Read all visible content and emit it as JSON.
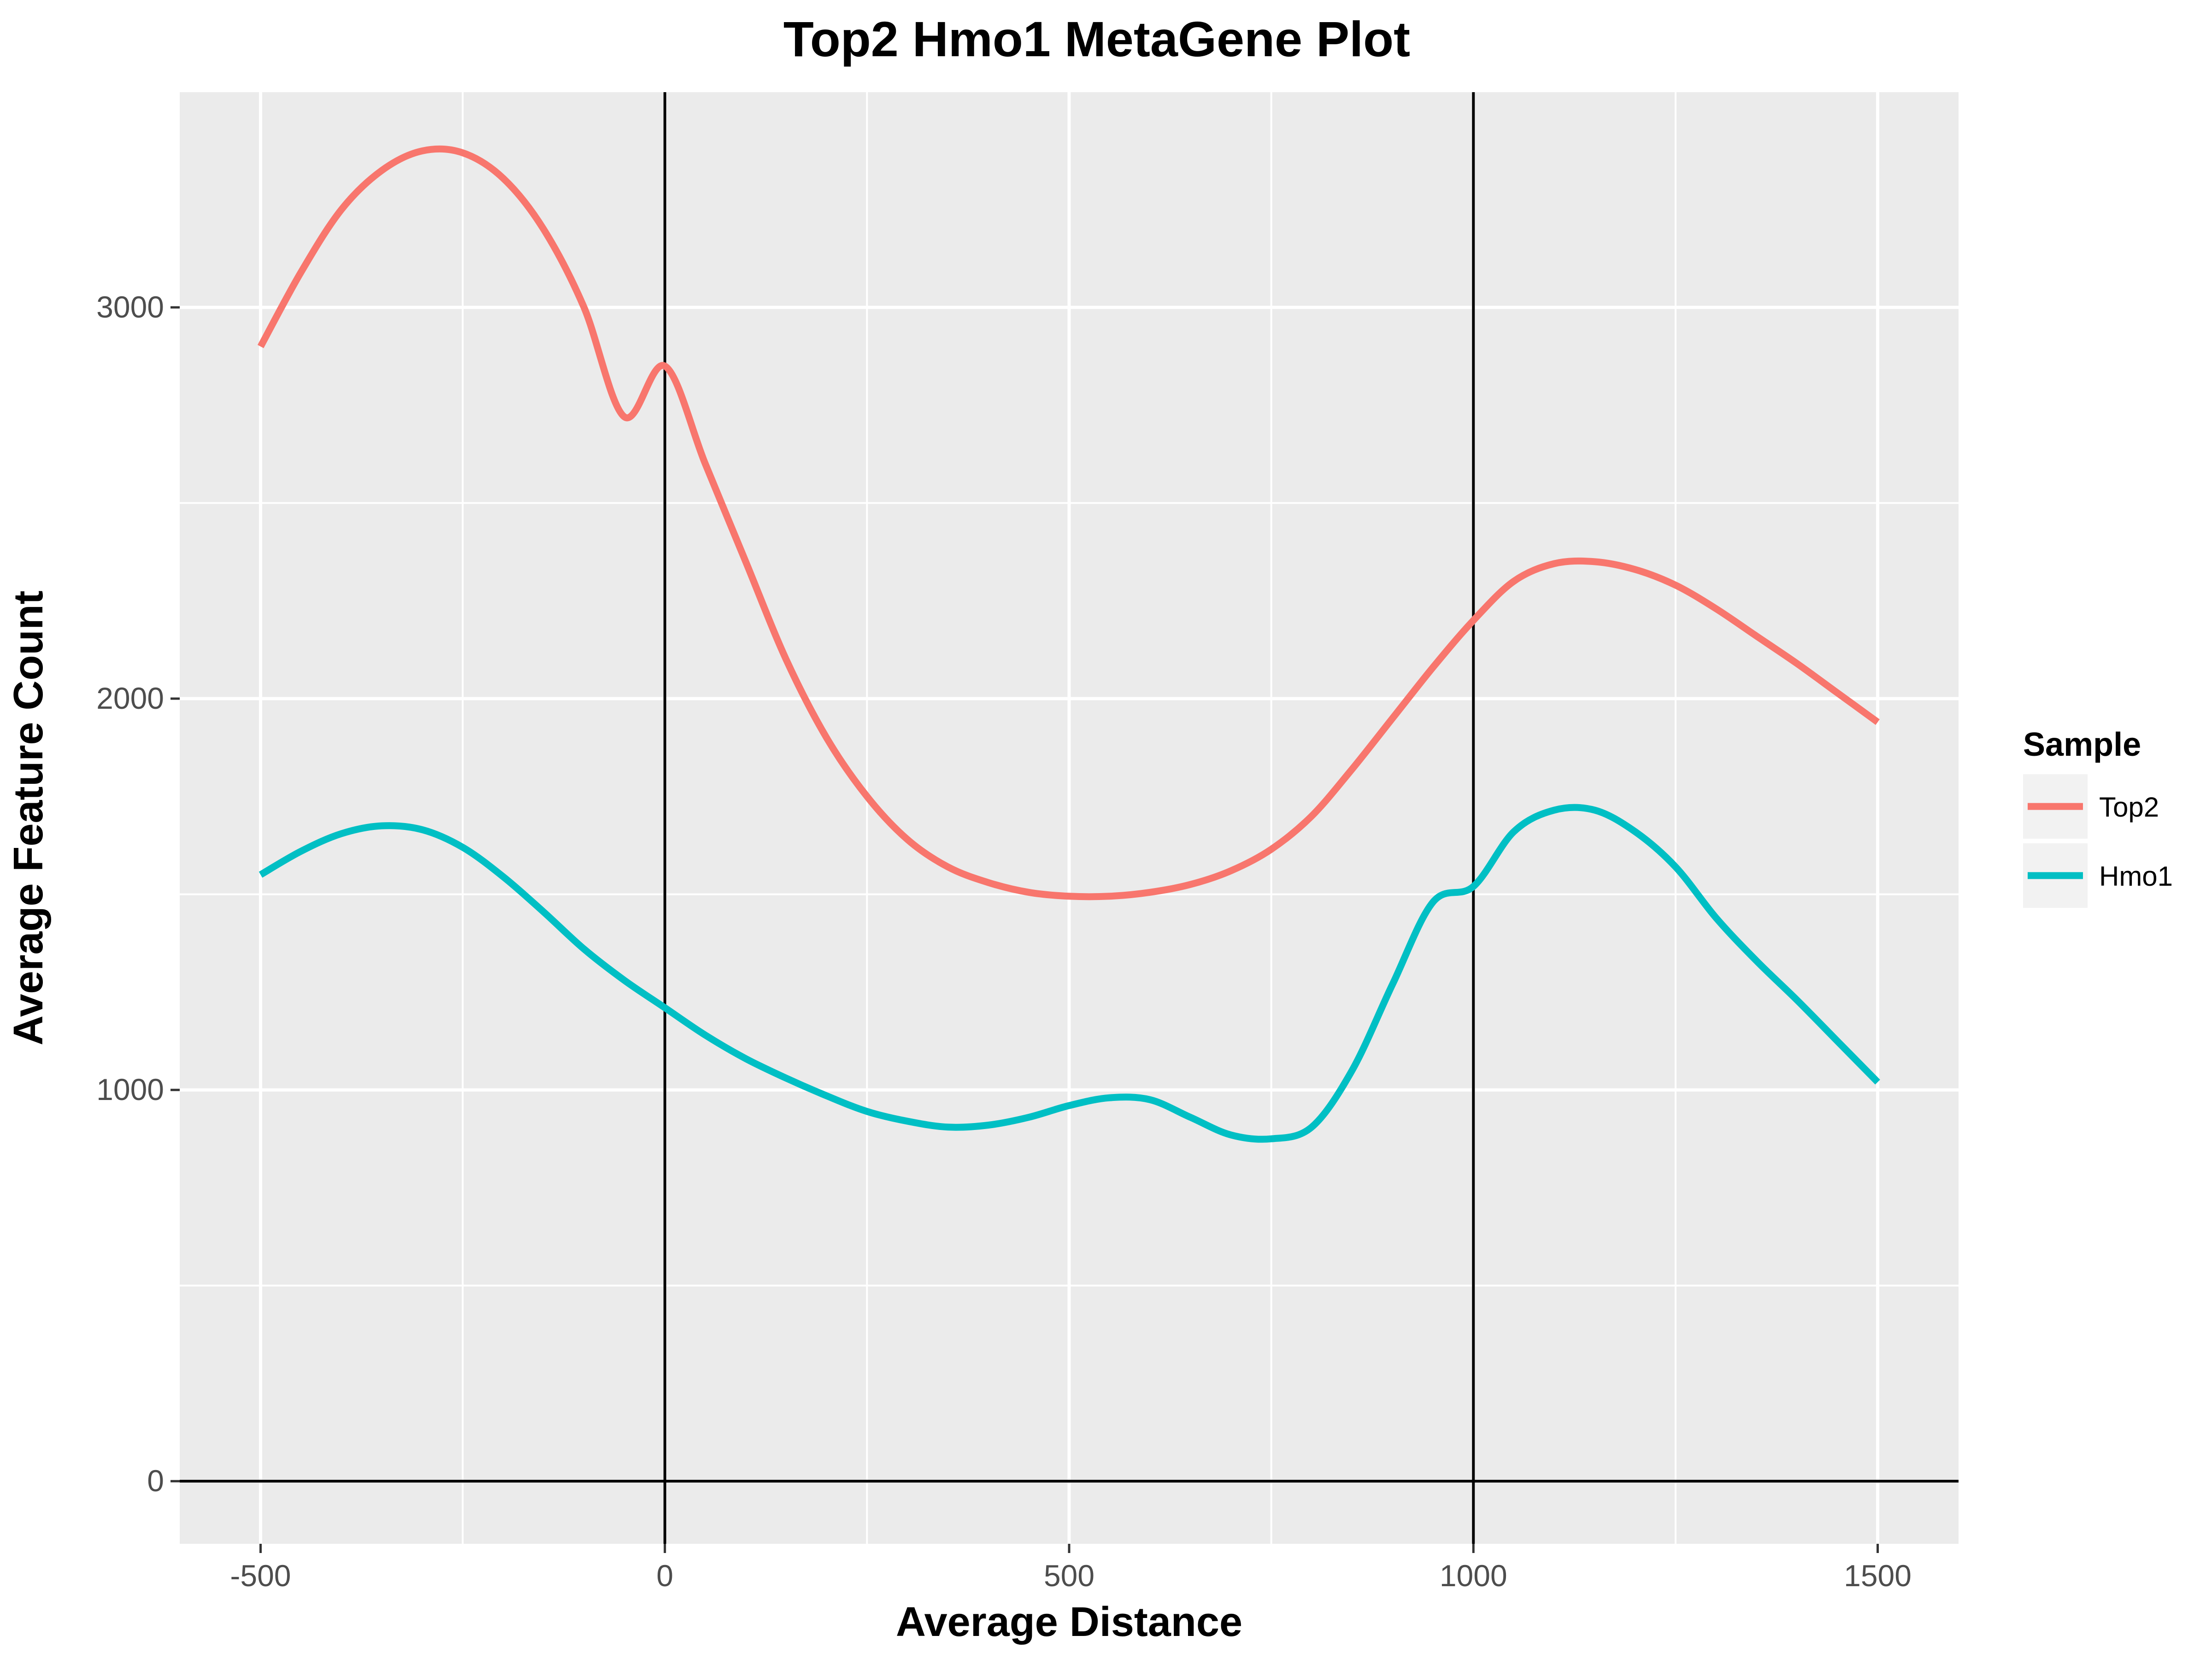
{
  "chart_data": {
    "type": "line",
    "title": "Top2 Hmo1 MetaGene Plot",
    "xlabel": "Average Distance",
    "ylabel": "Average Feature Count",
    "xlim": [
      -600,
      1600
    ],
    "ylim": [
      -160,
      3550
    ],
    "x_ticks": [
      -500,
      0,
      500,
      1000,
      1500
    ],
    "x_tick_labels": [
      "-500",
      "0",
      "500",
      "1000",
      "1500"
    ],
    "y_ticks": [
      0,
      1000,
      2000,
      3000
    ],
    "y_tick_labels": [
      "0",
      "1000",
      "2000",
      "3000"
    ],
    "x_minor_grid": [
      -250,
      250,
      750,
      1250
    ],
    "y_minor_grid": [
      500,
      1500,
      2500
    ],
    "reference_lines": {
      "vertical_x": [
        0,
        1000
      ],
      "horizontal_y": [
        0
      ]
    },
    "grid": true,
    "legend": {
      "title": "Sample",
      "position": "right"
    },
    "colors": {
      "panel": "#EBEBEB",
      "grid": "#FFFFFF",
      "reference": "#000000"
    },
    "x": [
      -500,
      -450,
      -400,
      -350,
      -300,
      -250,
      -200,
      -150,
      -100,
      -50,
      0,
      50,
      100,
      150,
      200,
      250,
      300,
      350,
      400,
      450,
      500,
      550,
      600,
      650,
      700,
      750,
      800,
      850,
      900,
      950,
      1000,
      1050,
      1100,
      1150,
      1200,
      1250,
      1300,
      1350,
      1400,
      1450,
      1500
    ],
    "series": [
      {
        "name": "Top2",
        "color": "#F8766D",
        "values": [
          2900,
          3090,
          3250,
          3350,
          3400,
          3395,
          3330,
          3200,
          3000,
          2720,
          2850,
          2600,
          2350,
          2100,
          1900,
          1750,
          1640,
          1570,
          1530,
          1505,
          1495,
          1495,
          1505,
          1525,
          1560,
          1615,
          1700,
          1820,
          1950,
          2080,
          2200,
          2300,
          2345,
          2350,
          2330,
          2290,
          2230,
          2160,
          2090,
          2015,
          1940
        ]
      },
      {
        "name": "Hmo1",
        "color": "#00BFC4",
        "values": [
          1550,
          1610,
          1655,
          1675,
          1665,
          1620,
          1545,
          1455,
          1360,
          1280,
          1210,
          1140,
          1080,
          1030,
          985,
          945,
          920,
          905,
          910,
          930,
          960,
          980,
          975,
          930,
          885,
          875,
          905,
          1050,
          1270,
          1480,
          1520,
          1660,
          1715,
          1715,
          1660,
          1570,
          1440,
          1330,
          1230,
          1125,
          1020
        ]
      }
    ]
  }
}
